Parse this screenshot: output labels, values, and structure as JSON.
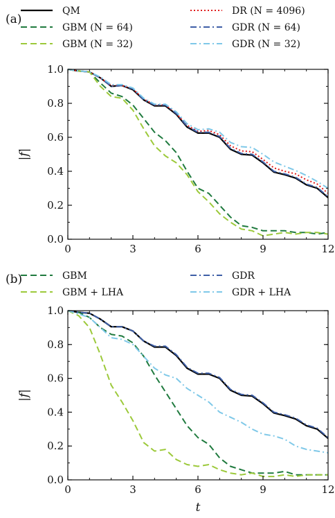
{
  "chart_data": [
    {
      "panel_label": "(a)",
      "type": "line",
      "xlabel": "",
      "ylabel": "|f|",
      "xlim": [
        0,
        12
      ],
      "ylim": [
        0,
        1.0
      ],
      "xticks": [
        "0",
        "3",
        "6",
        "9",
        "12"
      ],
      "yticks": [
        "0.0",
        "0.2",
        "0.4",
        "0.6",
        "0.8",
        "1.0"
      ],
      "grid": false,
      "legend_position": "top, two columns",
      "series": [
        {
          "name": "QM",
          "color": "#000000",
          "style": "solid",
          "x": [
            0,
            0.5,
            1,
            1.5,
            2,
            2.5,
            3,
            3.5,
            4,
            4.5,
            5,
            5.5,
            6,
            6.5,
            7,
            7.5,
            8,
            8.5,
            9,
            9.5,
            10,
            10.5,
            11,
            11.5,
            12
          ],
          "y": [
            1.0,
            0.99,
            0.985,
            0.95,
            0.9,
            0.905,
            0.88,
            0.82,
            0.785,
            0.785,
            0.735,
            0.66,
            0.625,
            0.625,
            0.6,
            0.53,
            0.5,
            0.495,
            0.45,
            0.395,
            0.38,
            0.36,
            0.32,
            0.3,
            0.245
          ]
        },
        {
          "name": "DR (N = 4096)",
          "color": "#e01c1c",
          "style": "dotted",
          "x": [
            0,
            0.5,
            1,
            1.5,
            2,
            2.5,
            3,
            3.5,
            4,
            4.5,
            5,
            5.5,
            6,
            6.5,
            7,
            7.5,
            8,
            8.5,
            9,
            9.5,
            10,
            10.5,
            11,
            11.5,
            12
          ],
          "y": [
            1.0,
            0.99,
            0.985,
            0.95,
            0.905,
            0.905,
            0.885,
            0.825,
            0.79,
            0.79,
            0.74,
            0.67,
            0.635,
            0.64,
            0.615,
            0.55,
            0.52,
            0.515,
            0.47,
            0.42,
            0.4,
            0.385,
            0.35,
            0.325,
            0.27
          ]
        },
        {
          "name": "GBM (N = 64)",
          "color": "#1f7a3e",
          "style": "dashed",
          "x": [
            0,
            0.5,
            1,
            1.5,
            2,
            2.5,
            3,
            3.5,
            4,
            4.5,
            5,
            5.5,
            6,
            6.5,
            7,
            7.5,
            8,
            8.5,
            9,
            9.5,
            10,
            10.5,
            11,
            11.5,
            12
          ],
          "y": [
            1.0,
            0.99,
            0.985,
            0.92,
            0.86,
            0.84,
            0.79,
            0.71,
            0.63,
            0.58,
            0.51,
            0.4,
            0.3,
            0.27,
            0.2,
            0.13,
            0.08,
            0.07,
            0.05,
            0.05,
            0.05,
            0.04,
            0.04,
            0.03,
            0.04
          ]
        },
        {
          "name": "GDR (N = 64)",
          "color": "#3d5ea6",
          "style": "dashdot",
          "x": [
            0,
            0.5,
            1,
            1.5,
            2,
            2.5,
            3,
            3.5,
            4,
            4.5,
            5,
            5.5,
            6,
            6.5,
            7,
            7.5,
            8,
            8.5,
            9,
            9.5,
            10,
            10.5,
            11,
            11.5,
            12
          ],
          "y": [
            1.0,
            0.99,
            0.985,
            0.95,
            0.9,
            0.905,
            0.885,
            0.82,
            0.79,
            0.79,
            0.74,
            0.665,
            0.63,
            0.63,
            0.605,
            0.535,
            0.505,
            0.5,
            0.455,
            0.4,
            0.385,
            0.365,
            0.325,
            0.305,
            0.25
          ]
        },
        {
          "name": "GBM (N = 32)",
          "color": "#9cc93a",
          "style": "dashed",
          "x": [
            0,
            0.5,
            1,
            1.5,
            2,
            2.5,
            3,
            3.5,
            4,
            4.5,
            5,
            5.5,
            6,
            6.5,
            7,
            7.5,
            8,
            8.5,
            9,
            9.5,
            10,
            10.5,
            11,
            11.5,
            12
          ],
          "y": [
            1.0,
            0.99,
            0.985,
            0.9,
            0.84,
            0.83,
            0.76,
            0.65,
            0.55,
            0.49,
            0.45,
            0.38,
            0.28,
            0.22,
            0.15,
            0.1,
            0.06,
            0.05,
            0.02,
            0.03,
            0.04,
            0.03,
            0.04,
            0.04,
            0.03
          ]
        },
        {
          "name": "GDR (N = 32)",
          "color": "#7ec8e8",
          "style": "dashdot",
          "x": [
            0,
            0.5,
            1,
            1.5,
            2,
            2.5,
            3,
            3.5,
            4,
            4.5,
            5,
            5.5,
            6,
            6.5,
            7,
            7.5,
            8,
            8.5,
            9,
            9.5,
            10,
            10.5,
            11,
            11.5,
            12
          ],
          "y": [
            1.0,
            0.99,
            0.985,
            0.955,
            0.91,
            0.91,
            0.89,
            0.83,
            0.795,
            0.795,
            0.75,
            0.68,
            0.645,
            0.65,
            0.63,
            0.57,
            0.545,
            0.54,
            0.5,
            0.455,
            0.43,
            0.405,
            0.375,
            0.34,
            0.3
          ]
        }
      ]
    },
    {
      "panel_label": "(b)",
      "type": "line",
      "xlabel": "t",
      "ylabel": "|f|",
      "xlim": [
        0,
        12
      ],
      "ylim": [
        0,
        1.0
      ],
      "xticks": [
        "0",
        "3",
        "6",
        "9",
        "12"
      ],
      "yticks": [
        "0.0",
        "0.2",
        "0.4",
        "0.6",
        "0.8",
        "1.0"
      ],
      "grid": false,
      "legend_position": "top, two columns",
      "series": [
        {
          "name": "",
          "color": "#000000",
          "style": "solid",
          "x": [
            0,
            0.5,
            1,
            1.5,
            2,
            2.5,
            3,
            3.5,
            4,
            4.5,
            5,
            5.5,
            6,
            6.5,
            7,
            7.5,
            8,
            8.5,
            9,
            9.5,
            10,
            10.5,
            11,
            11.5,
            12
          ],
          "y": [
            1.0,
            0.99,
            0.985,
            0.95,
            0.905,
            0.905,
            0.88,
            0.82,
            0.785,
            0.785,
            0.735,
            0.66,
            0.625,
            0.625,
            0.6,
            0.53,
            0.5,
            0.495,
            0.45,
            0.395,
            0.38,
            0.36,
            0.32,
            0.3,
            0.245
          ]
        },
        {
          "name": "GBM",
          "color": "#1f7a3e",
          "style": "dashed",
          "x": [
            0,
            0.5,
            1,
            1.5,
            2,
            2.5,
            3,
            3.5,
            4,
            4.5,
            5,
            5.5,
            6,
            6.5,
            7,
            7.5,
            8,
            8.5,
            9,
            9.5,
            10,
            10.5,
            11,
            11.5,
            12
          ],
          "y": [
            1.0,
            0.99,
            0.96,
            0.9,
            0.86,
            0.85,
            0.81,
            0.73,
            0.62,
            0.52,
            0.42,
            0.32,
            0.25,
            0.21,
            0.13,
            0.08,
            0.06,
            0.04,
            0.04,
            0.04,
            0.05,
            0.03,
            0.03,
            0.03,
            0.03
          ]
        },
        {
          "name": "GDR",
          "color": "#3d5ea6",
          "style": "dashdot",
          "x": [
            0,
            0.5,
            1,
            1.5,
            2,
            2.5,
            3,
            3.5,
            4,
            4.5,
            5,
            5.5,
            6,
            6.5,
            7,
            7.5,
            8,
            8.5,
            9,
            9.5,
            10,
            10.5,
            11,
            11.5,
            12
          ],
          "y": [
            1.0,
            0.99,
            0.985,
            0.95,
            0.905,
            0.905,
            0.88,
            0.82,
            0.79,
            0.79,
            0.74,
            0.665,
            0.63,
            0.63,
            0.605,
            0.535,
            0.505,
            0.5,
            0.455,
            0.4,
            0.385,
            0.365,
            0.325,
            0.305,
            0.25
          ]
        },
        {
          "name": "GBM + LHA",
          "color": "#9cc93a",
          "style": "dashed",
          "x": [
            0,
            0.5,
            1,
            1.5,
            2,
            2.5,
            3,
            3.5,
            4,
            4.5,
            5,
            5.5,
            6,
            6.5,
            7,
            7.5,
            8,
            8.5,
            9,
            9.5,
            10,
            10.5,
            11,
            11.5,
            12
          ],
          "y": [
            1.0,
            0.97,
            0.9,
            0.74,
            0.56,
            0.46,
            0.35,
            0.22,
            0.17,
            0.18,
            0.12,
            0.09,
            0.08,
            0.09,
            0.06,
            0.04,
            0.03,
            0.04,
            0.02,
            0.02,
            0.03,
            0.02,
            0.03,
            0.03,
            0.03
          ]
        },
        {
          "name": "GDR + LHA",
          "color": "#7ec8e8",
          "style": "dashdot",
          "x": [
            0,
            0.5,
            1,
            1.5,
            2,
            2.5,
            3,
            3.5,
            4,
            4.5,
            5,
            5.5,
            6,
            6.5,
            7,
            7.5,
            8,
            8.5,
            9,
            9.5,
            10,
            10.5,
            11,
            11.5,
            12
          ],
          "y": [
            1.0,
            0.98,
            0.96,
            0.9,
            0.84,
            0.83,
            0.8,
            0.73,
            0.66,
            0.62,
            0.6,
            0.54,
            0.5,
            0.46,
            0.4,
            0.37,
            0.34,
            0.3,
            0.27,
            0.26,
            0.24,
            0.2,
            0.18,
            0.17,
            0.16
          ]
        }
      ]
    }
  ]
}
